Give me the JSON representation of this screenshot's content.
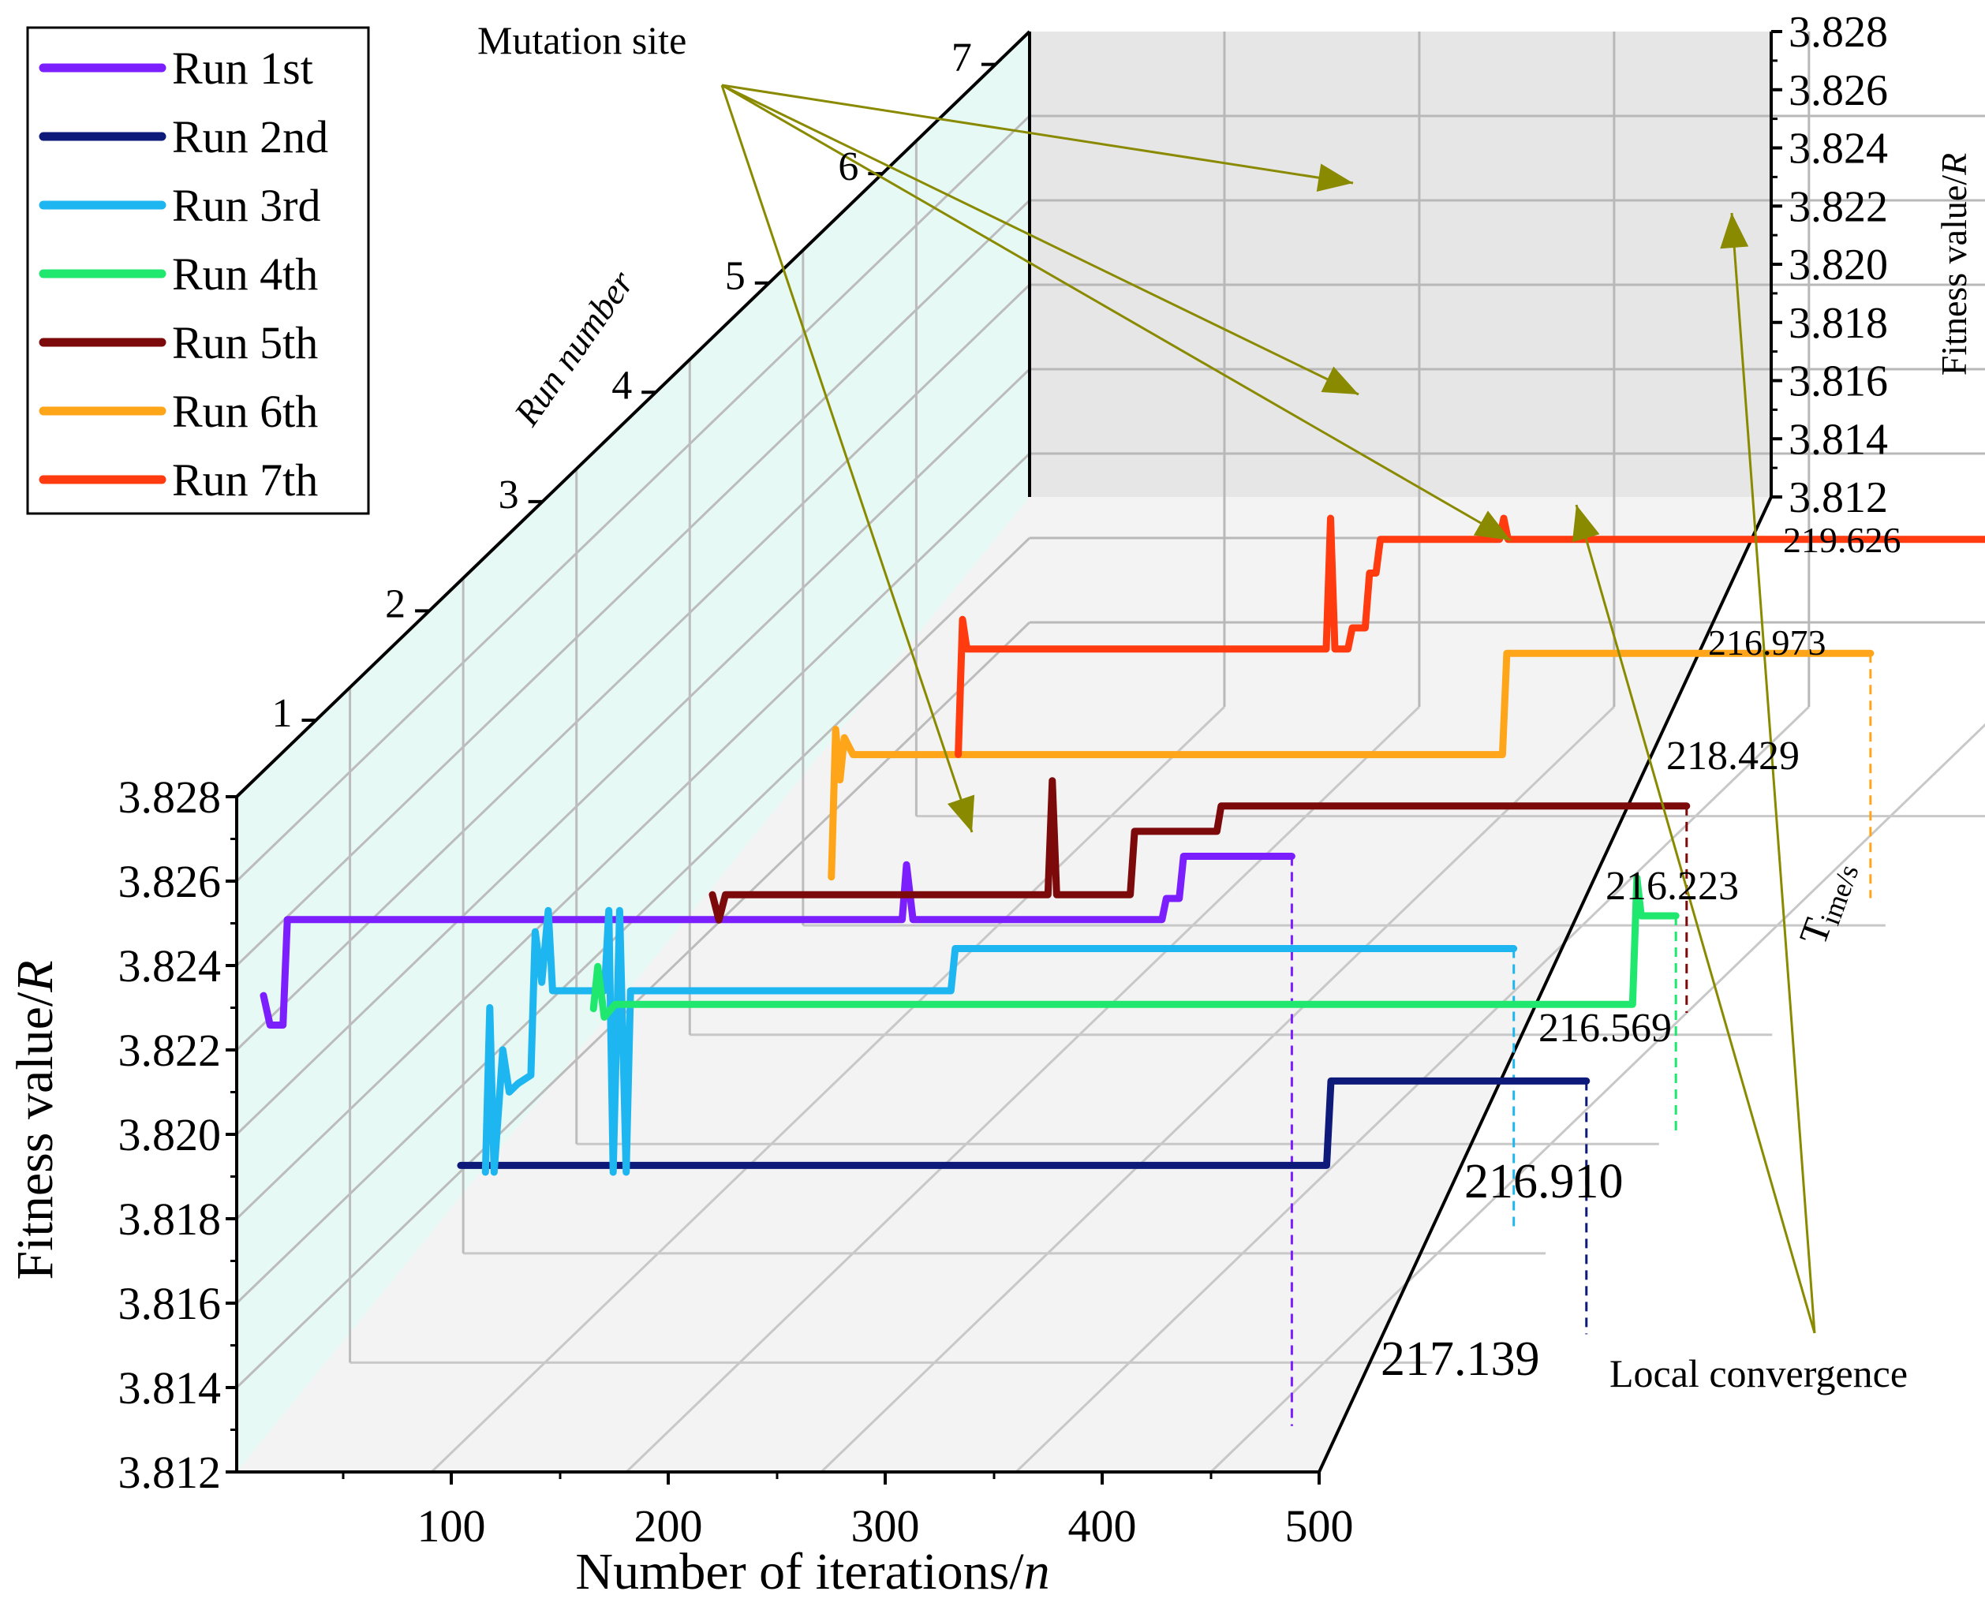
{
  "chart_data": {
    "type": "line",
    "subtype": "3d-staircase",
    "xlabel_main": "Number of iterations/",
    "xlabel_italic": "n",
    "ylabel_left_main": "Fitness value/",
    "ylabel_left_italic": "R",
    "ylabel_right_main": "Fitness value/",
    "ylabel_right_italic": "R",
    "zlabel": "Run number",
    "time_label_main": "T",
    "time_label_sub": "ime/s",
    "xlim": [
      0,
      500
    ],
    "ylim": [
      3.812,
      3.828
    ],
    "x_ticks": [
      "100",
      "200",
      "300",
      "400",
      "500"
    ],
    "y_ticks_left": [
      "3.812",
      "3.814",
      "3.816",
      "3.818",
      "3.820",
      "3.822",
      "3.824",
      "3.826",
      "3.828"
    ],
    "y_ticks_right": [
      "3.812",
      "3.814",
      "3.816",
      "3.818",
      "3.820",
      "3.822",
      "3.824",
      "3.826",
      "3.828"
    ],
    "z_ticks": [
      "1",
      "2",
      "3",
      "4",
      "5",
      "6",
      "7"
    ],
    "annotations": {
      "mutation": "Mutation site",
      "local": "Local convergence"
    },
    "series": [
      {
        "name": "Run 1st",
        "run": 1,
        "color": "#7b1fff",
        "time": "217.139",
        "points": [
          [
            5,
            3.8222
          ],
          [
            8,
            3.8215
          ],
          [
            14,
            3.8215
          ],
          [
            16,
            3.824
          ],
          [
            300,
            3.824
          ],
          [
            302,
            3.8253
          ],
          [
            305,
            3.824
          ],
          [
            420,
            3.824
          ],
          [
            422,
            3.8245
          ],
          [
            428,
            3.8245
          ],
          [
            430,
            3.8255
          ],
          [
            480,
            3.8255
          ]
        ]
      },
      {
        "name": "Run 2nd",
        "run": 2,
        "color": "#0d1a7a",
        "time": "216.910",
        "points": [
          [
            0,
            3.816
          ],
          [
            400,
            3.816
          ],
          [
            402,
            3.818
          ],
          [
            520,
            3.818
          ]
        ]
      },
      {
        "name": "Run 3rd",
        "run": 3,
        "color": "#1eb6f0",
        "time": "216.569",
        "points": [
          [
            5,
            3.8133
          ],
          [
            7,
            3.8172
          ],
          [
            9,
            3.8133
          ],
          [
            13,
            3.8162
          ],
          [
            16,
            3.8152
          ],
          [
            20,
            3.8154
          ],
          [
            26,
            3.8156
          ],
          [
            28,
            3.819
          ],
          [
            31,
            3.8178
          ],
          [
            34,
            3.8195
          ],
          [
            36,
            3.8176
          ],
          [
            60,
            3.8176
          ],
          [
            62,
            3.8195
          ],
          [
            64,
            3.8133
          ],
          [
            67,
            3.8195
          ],
          [
            70,
            3.8133
          ],
          [
            72,
            3.8176
          ],
          [
            220,
            3.8176
          ],
          [
            222,
            3.8186
          ],
          [
            480,
            3.8186
          ]
        ]
      },
      {
        "name": "Run 4th",
        "run": 4,
        "color": "#20e86e",
        "time": "216.223",
        "points": [
          [
            0,
            3.815
          ],
          [
            2,
            3.816
          ],
          [
            5,
            3.8148
          ],
          [
            10,
            3.8151
          ],
          [
            480,
            3.8151
          ],
          [
            482,
            3.8181
          ],
          [
            484,
            3.8172
          ],
          [
            500,
            3.8172
          ]
        ]
      },
      {
        "name": "Run 5th",
        "run": 5,
        "color": "#7d0a0a",
        "time": "218.429",
        "points": [
          [
            0,
            3.8148
          ],
          [
            3,
            3.8142
          ],
          [
            6,
            3.8148
          ],
          [
            155,
            3.8148
          ],
          [
            157,
            3.8175
          ],
          [
            159,
            3.8148
          ],
          [
            188,
            3.8148
          ],
          [
            193,
            3.8148
          ],
          [
            195,
            3.8163
          ],
          [
            233,
            3.8163
          ],
          [
            235,
            3.8169
          ],
          [
            450,
            3.8169
          ]
        ]
      },
      {
        "name": "Run 6th",
        "run": 6,
        "color": "#ffa51a",
        "time": "216.973",
        "points": [
          [
            0,
            3.8125
          ],
          [
            2,
            3.816
          ],
          [
            4,
            3.8148
          ],
          [
            6,
            3.8158
          ],
          [
            10,
            3.8154
          ],
          [
            310,
            3.8154
          ],
          [
            312,
            3.8178
          ],
          [
            480,
            3.8178
          ]
        ]
      },
      {
        "name": "Run 7th",
        "run": 7,
        "color": "#ff3b0f",
        "time": "219.626",
        "points": [
          [
            0,
            3.8125
          ],
          [
            2,
            3.8157
          ],
          [
            4,
            3.815
          ],
          [
            170,
            3.815
          ],
          [
            172,
            3.8181
          ],
          [
            174,
            3.815
          ],
          [
            180,
            3.815
          ],
          [
            182,
            3.8155
          ],
          [
            188,
            3.8155
          ],
          [
            190,
            3.8168
          ],
          [
            193,
            3.8168
          ],
          [
            195,
            3.8176
          ],
          [
            250,
            3.8176
          ],
          [
            252,
            3.8181
          ],
          [
            254,
            3.8176
          ],
          [
            520,
            3.8176
          ]
        ]
      }
    ]
  }
}
